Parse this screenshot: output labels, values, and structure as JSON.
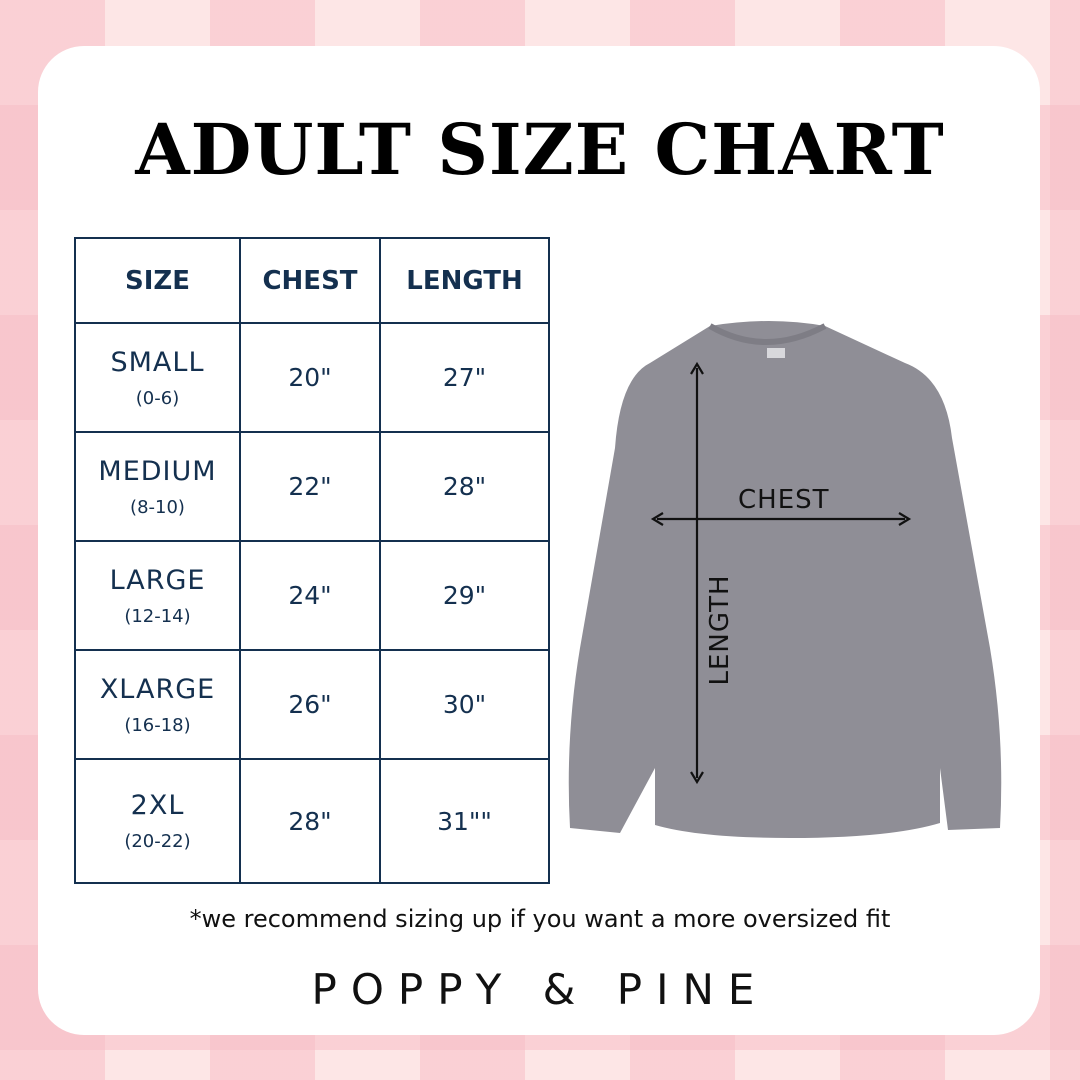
{
  "title": "ADULT SIZE CHART",
  "table": {
    "headers": [
      "SIZE",
      "CHEST",
      "LENGTH"
    ],
    "rows": [
      {
        "size": "SMALL",
        "range": "(0-6)",
        "chest": "20\"",
        "length": "27\""
      },
      {
        "size": "MEDIUM",
        "range": "(8-10)",
        "chest": "22\"",
        "length": "28\""
      },
      {
        "size": "LARGE",
        "range": "(12-14)",
        "chest": "24\"",
        "length": "29\""
      },
      {
        "size": "XLARGE",
        "range": "(16-18)",
        "chest": "26\"",
        "length": "30\""
      },
      {
        "size": "2XL",
        "range": "(20-22)",
        "chest": "28\"",
        "length": "31\"\""
      }
    ]
  },
  "diagram": {
    "chest_label": "CHEST",
    "length_label": "LENGTH",
    "shirt_color": "#8f8e96"
  },
  "note": "*we recommend sizing up if you want a more oversized fit",
  "brand": "POPPY & PINE",
  "colors": {
    "table": "#14304f",
    "background": "#fde6e6",
    "checker": "#f7bec6"
  }
}
